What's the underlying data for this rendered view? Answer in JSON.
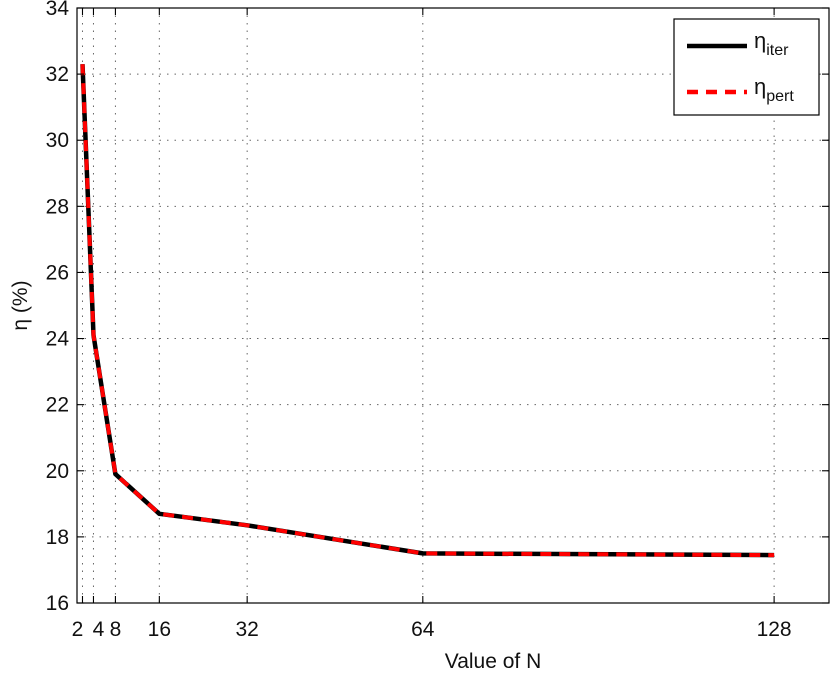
{
  "chart_data": {
    "type": "line",
    "xlabel": "Value of N",
    "ylabel": "η (%)",
    "xlim": [
      1,
      138
    ],
    "ylim": [
      16,
      34
    ],
    "x": [
      2,
      4,
      8,
      16,
      32,
      64,
      128
    ],
    "xticks": [
      2,
      4,
      8,
      16,
      32,
      64,
      128
    ],
    "xtick_labels": [
      "2",
      "4",
      "8",
      "16",
      "32",
      "64",
      "128"
    ],
    "yticks": [
      16,
      18,
      20,
      22,
      24,
      26,
      28,
      30,
      32,
      34
    ],
    "grid": true,
    "legend_position": "top-right",
    "series": [
      {
        "name": "η",
        "subscript": "iter",
        "color": "#000000",
        "style": "solid",
        "values": [
          32.3,
          24.1,
          19.9,
          18.7,
          18.35,
          17.5,
          17.45
        ]
      },
      {
        "name": "η",
        "subscript": "pert",
        "color": "#ff0000",
        "style": "dashed",
        "values": [
          32.3,
          24.1,
          19.9,
          18.7,
          18.35,
          17.5,
          17.45
        ]
      }
    ]
  }
}
